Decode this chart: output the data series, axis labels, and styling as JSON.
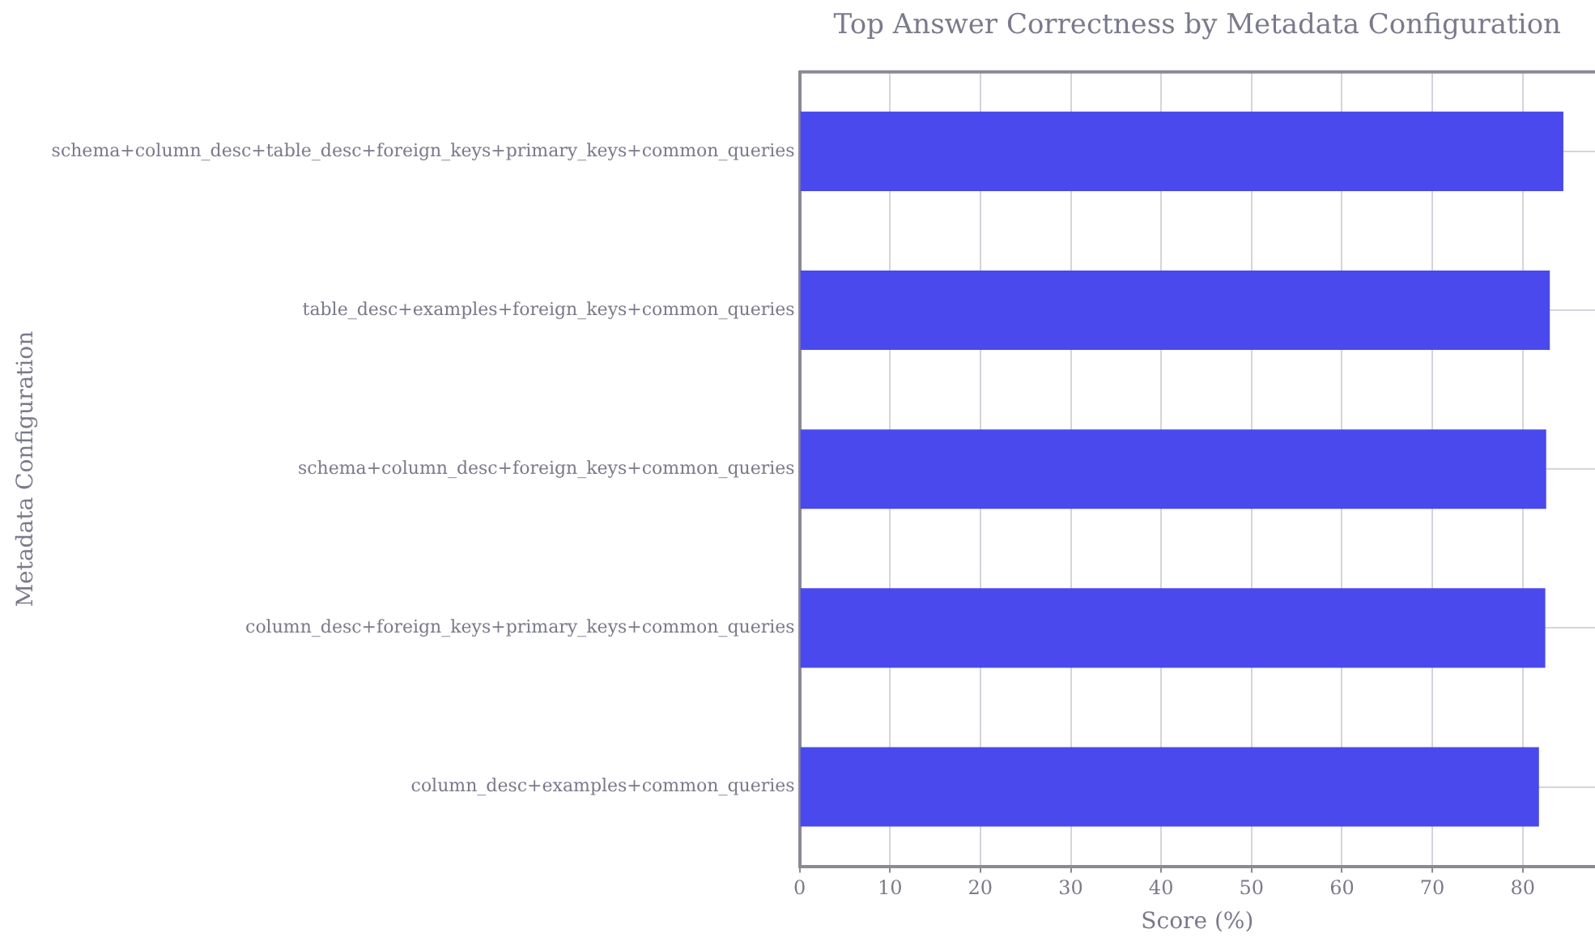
{
  "chart_data": {
    "type": "bar",
    "orientation": "horizontal",
    "title": "Top Answer Correctness by Metadata Configuration",
    "xlabel": "Score (%)",
    "ylabel": "Metadata Configuration",
    "categories": [
      "schema+column_desc+table_desc+foreign_keys+primary_keys+common_queries",
      "table_desc+examples+foreign_keys+common_queries",
      "schema+column_desc+foreign_keys+common_queries",
      "column_desc+foreign_keys+primary_keys+common_queries",
      "column_desc+examples+common_queries"
    ],
    "values": [
      84.5,
      83.0,
      82.6,
      82.5,
      81.8
    ],
    "color": "#4949ee",
    "xlim": [
      0,
      88
    ],
    "xticks": [
      0,
      10,
      20,
      30,
      40,
      50,
      60,
      70,
      80
    ],
    "grid": true,
    "legend": false
  }
}
